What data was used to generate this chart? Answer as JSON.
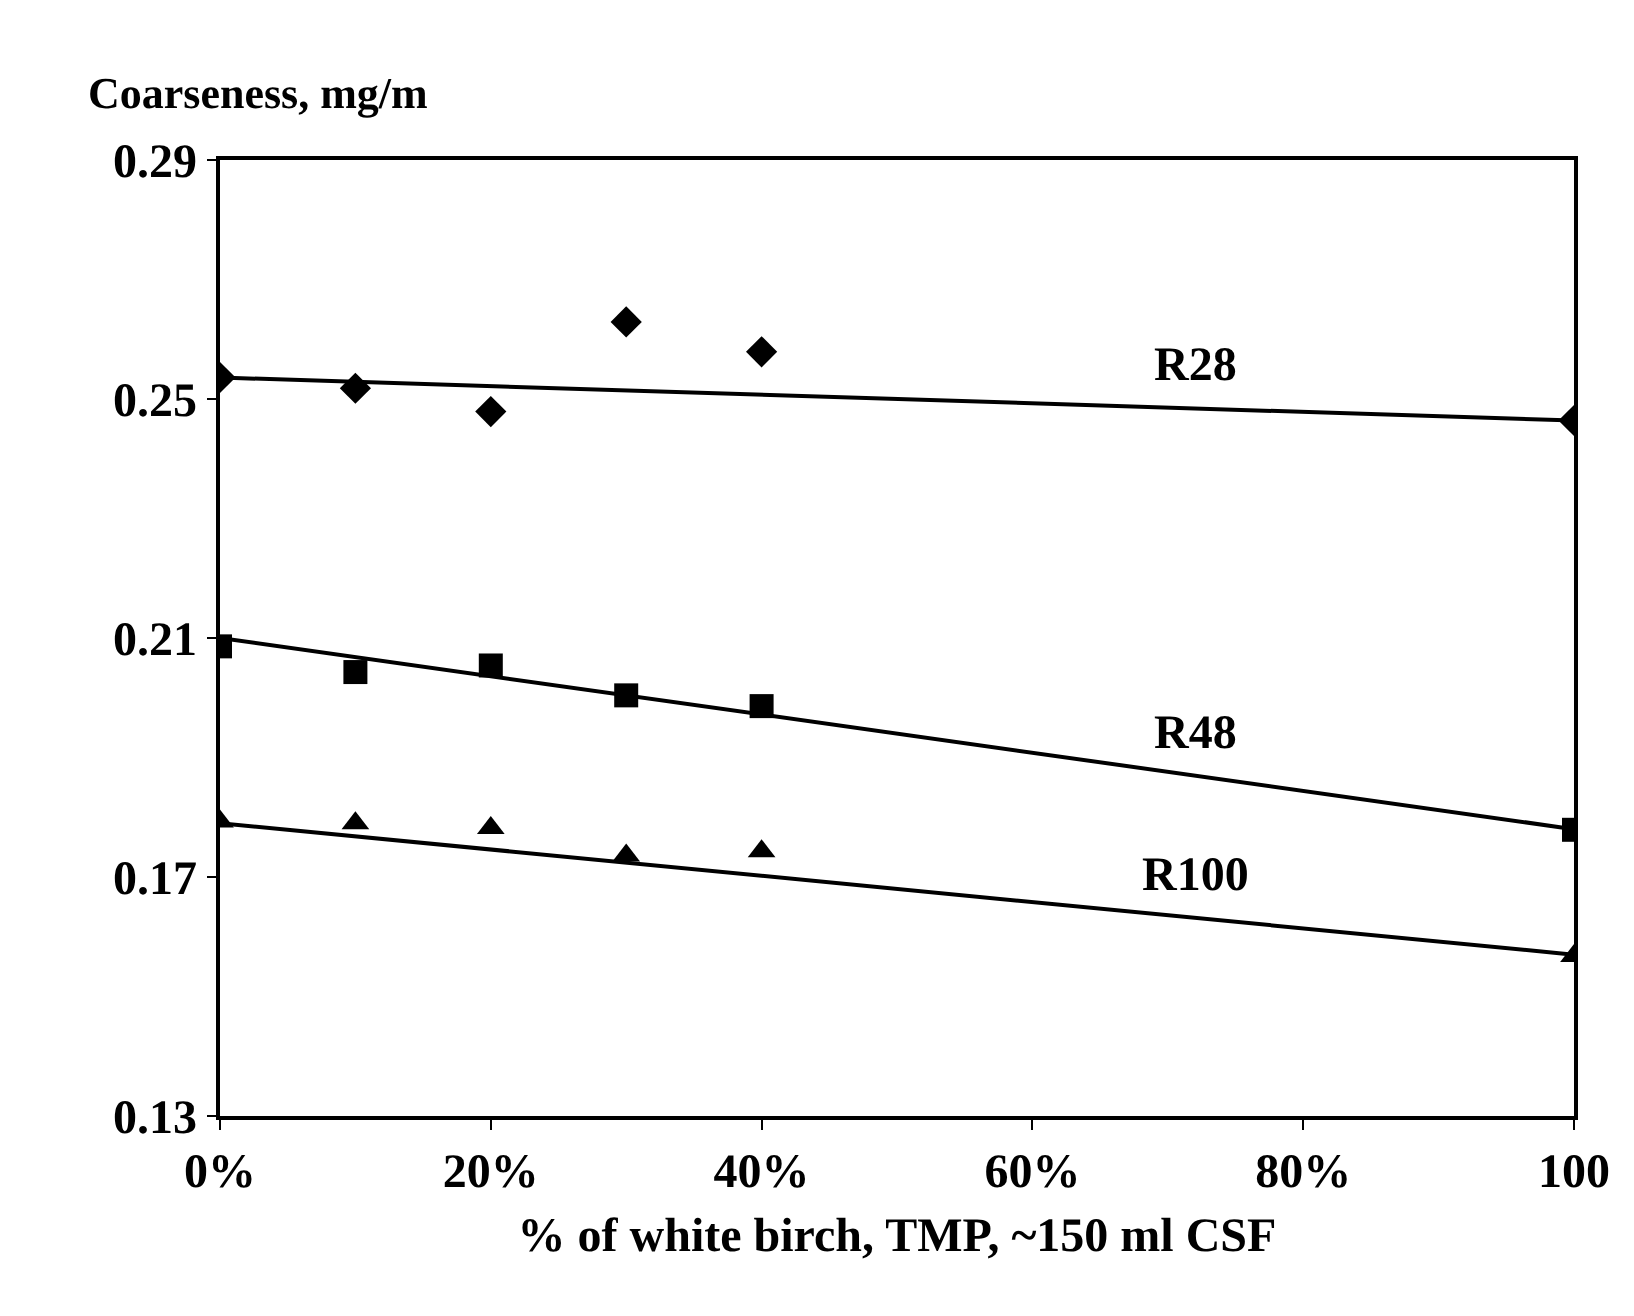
{
  "chart_data": {
    "type": "scatter",
    "ylabel": "Coarseness, mg/m",
    "xlabel": "% of white birch, TMP, ~150 ml CSF",
    "xlim": [
      0,
      100
    ],
    "xticks": [
      {
        "value": 0,
        "label": "0%"
      },
      {
        "value": 20,
        "label": "20%"
      },
      {
        "value": 40,
        "label": "40%"
      },
      {
        "value": 60,
        "label": "60%"
      },
      {
        "value": 80,
        "label": "80%"
      },
      {
        "value": 100,
        "label": "100"
      }
    ],
    "ylim": [
      0.13,
      0.29
    ],
    "yticks": [
      0.13,
      0.17,
      0.21,
      0.25,
      0.29
    ],
    "legend": false,
    "series": [
      {
        "marker": "diamond",
        "color": "#000000",
        "x": [
          0,
          10,
          20,
          30,
          40,
          100
        ],
        "values": [
          0.2536,
          0.2518,
          0.2479,
          0.2629,
          0.2579,
          0.2464
        ]
      },
      {
        "marker": "square",
        "color": "#000000",
        "x": [
          0,
          10,
          20,
          30,
          40,
          100
        ],
        "values": [
          0.2086,
          0.2043,
          0.2054,
          0.2004,
          0.1986,
          0.1779
        ]
      },
      {
        "marker": "triangle",
        "color": "#000000",
        "x": [
          0,
          10,
          20,
          30,
          40,
          100
        ],
        "values": [
          0.1793,
          0.179,
          0.1782,
          0.1736,
          0.1743,
          0.1568
        ]
      },
      {
        "type": "line",
        "name": "R28",
        "marker": "none",
        "color": "#000000",
        "x": [
          0,
          100
        ],
        "values": [
          0.2536,
          0.2464
        ]
      },
      {
        "type": "line",
        "name": "R48",
        "marker": "none",
        "color": "#000000",
        "x": [
          0,
          100
        ],
        "values": [
          0.21,
          0.178
        ]
      },
      {
        "type": "line",
        "name": "R100",
        "marker": "none",
        "color": "#000000",
        "x": [
          0,
          100
        ],
        "values": [
          0.179,
          0.157
        ]
      }
    ]
  }
}
